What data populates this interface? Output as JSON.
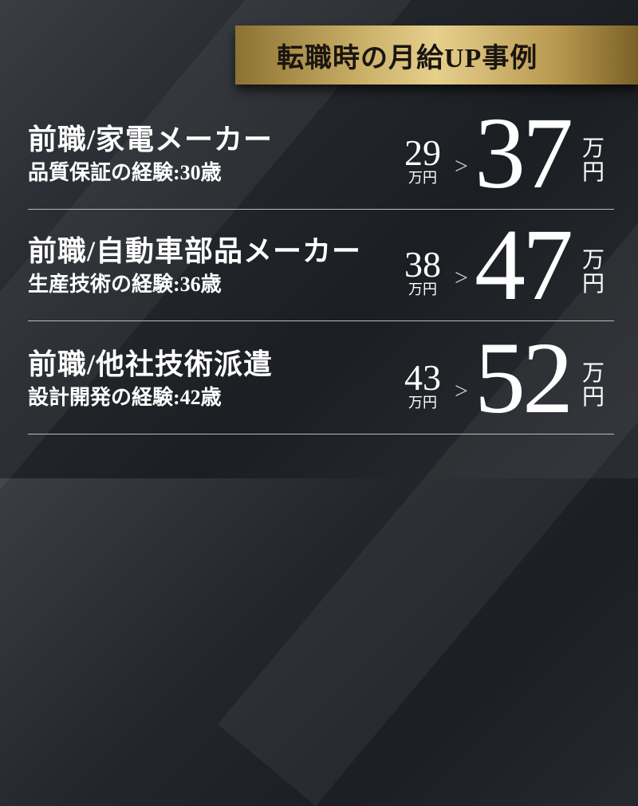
{
  "banner": {
    "title": "転職時の月給UP事例"
  },
  "cases": [
    {
      "title": "前職/家電メーカー",
      "subtitle": "品質保証の経験:30歳",
      "before": "29",
      "before_unit": "万円",
      "arrow": ">",
      "after": "37",
      "after_unit_1": "万",
      "after_unit_2": "円"
    },
    {
      "title": "前職/自動車部品メーカー",
      "subtitle": "生産技術の経験:36歳",
      "before": "38",
      "before_unit": "万円",
      "arrow": ">",
      "after": "47",
      "after_unit_1": "万",
      "after_unit_2": "円"
    },
    {
      "title": "前職/他社技術派遣",
      "subtitle": "設計開発の経験:42歳",
      "before": "43",
      "before_unit": "万円",
      "arrow": ">",
      "after": "52",
      "after_unit_1": "万",
      "after_unit_2": "円"
    }
  ],
  "colors": {
    "banner_gold": "#c8ad66",
    "background": "#23272c",
    "text": "#ffffff"
  }
}
